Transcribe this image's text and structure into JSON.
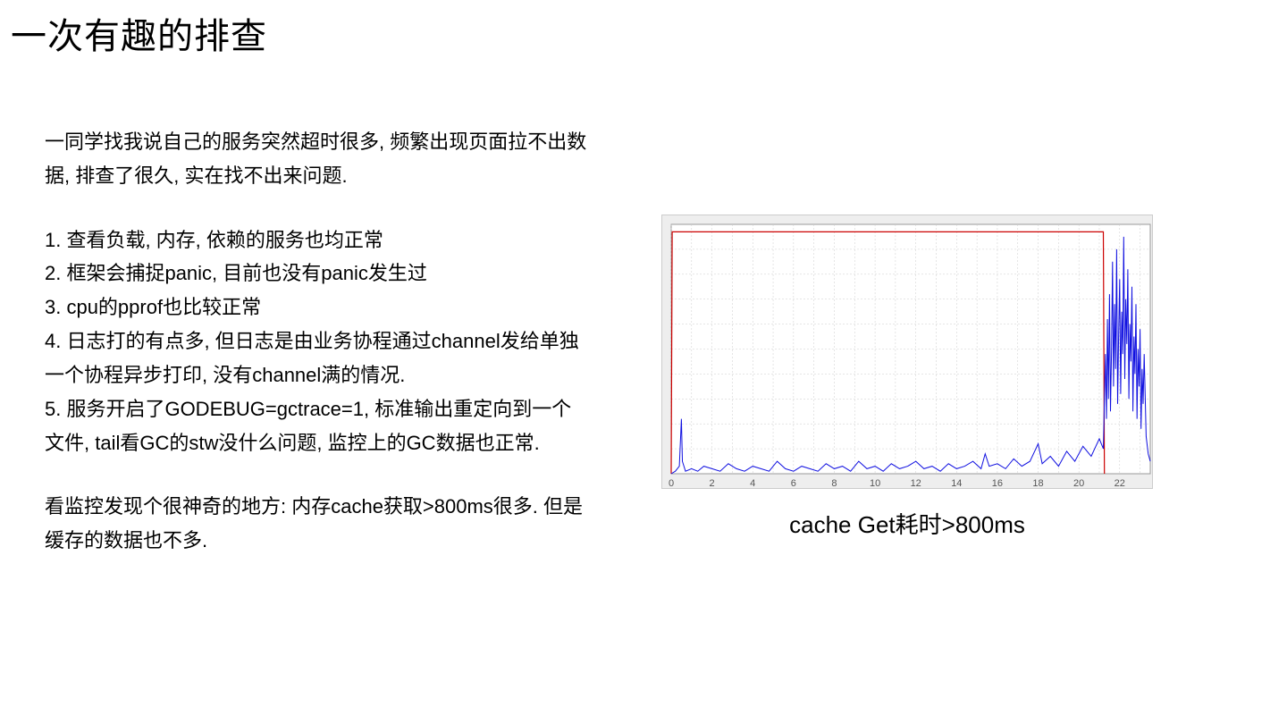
{
  "title": "一次有趣的排查",
  "intro": "一同学找我说自己的服务突然超时很多, 频繁出现页面拉不出数据, 排查了很久, 实在找不出来问题.",
  "points": [
    "1. 查看负载, 内存, 依赖的服务也均正常",
    "2. 框架会捕捉panic, 目前也没有panic发生过",
    "3. cpu的pprof也比较正常",
    "4. 日志打的有点多, 但日志是由业务协程通过channel发给单独一个协程异步打印, 没有channel满的情况.",
    "5. 服务开启了GODEBUG=gctrace=1, 标准输出重定向到一个文件, tail看GC的stw没什么问题, 监控上的GC数据也正常."
  ],
  "observation": "看监控发现个很神奇的地方: 内存cache获取>800ms很多. 但是缓存的数据也不多.",
  "chart": {
    "caption": "cache Get耗时>800ms",
    "type": "line",
    "plot_background": "#ffffff",
    "outer_background": "#eeeeee",
    "border_color": "#cccccc",
    "grid_color": "#cccccc",
    "x_ticks": [
      0,
      2,
      4,
      6,
      8,
      10,
      12,
      14,
      16,
      18,
      20,
      22
    ],
    "x_range": [
      0,
      23.5
    ],
    "y_range": [
      0,
      1.0
    ],
    "tick_font_color": "#555555",
    "tick_font_size": 11,
    "threshold_line": {
      "color": "#cc0000",
      "width": 1.2,
      "points": [
        [
          0,
          0
        ],
        [
          0.05,
          0.97
        ],
        [
          21.2,
          0.97
        ],
        [
          21.25,
          0
        ]
      ]
    },
    "series": {
      "color": "#1010e0",
      "width": 1.0,
      "points": [
        [
          0.0,
          0.0
        ],
        [
          0.2,
          0.01
        ],
        [
          0.4,
          0.03
        ],
        [
          0.5,
          0.22
        ],
        [
          0.55,
          0.05
        ],
        [
          0.7,
          0.01
        ],
        [
          1.0,
          0.02
        ],
        [
          1.3,
          0.01
        ],
        [
          1.6,
          0.03
        ],
        [
          2.0,
          0.02
        ],
        [
          2.4,
          0.01
        ],
        [
          2.8,
          0.04
        ],
        [
          3.2,
          0.02
        ],
        [
          3.6,
          0.01
        ],
        [
          4.0,
          0.03
        ],
        [
          4.4,
          0.02
        ],
        [
          4.8,
          0.01
        ],
        [
          5.2,
          0.05
        ],
        [
          5.6,
          0.02
        ],
        [
          6.0,
          0.01
        ],
        [
          6.4,
          0.03
        ],
        [
          6.8,
          0.02
        ],
        [
          7.2,
          0.01
        ],
        [
          7.6,
          0.04
        ],
        [
          8.0,
          0.02
        ],
        [
          8.4,
          0.03
        ],
        [
          8.8,
          0.01
        ],
        [
          9.2,
          0.05
        ],
        [
          9.6,
          0.02
        ],
        [
          10.0,
          0.03
        ],
        [
          10.4,
          0.01
        ],
        [
          10.8,
          0.04
        ],
        [
          11.2,
          0.02
        ],
        [
          11.6,
          0.03
        ],
        [
          12.0,
          0.05
        ],
        [
          12.4,
          0.02
        ],
        [
          12.8,
          0.03
        ],
        [
          13.2,
          0.01
        ],
        [
          13.6,
          0.04
        ],
        [
          14.0,
          0.02
        ],
        [
          14.4,
          0.03
        ],
        [
          14.8,
          0.05
        ],
        [
          15.2,
          0.02
        ],
        [
          15.4,
          0.08
        ],
        [
          15.6,
          0.03
        ],
        [
          16.0,
          0.04
        ],
        [
          16.4,
          0.02
        ],
        [
          16.8,
          0.06
        ],
        [
          17.2,
          0.03
        ],
        [
          17.6,
          0.05
        ],
        [
          18.0,
          0.12
        ],
        [
          18.2,
          0.04
        ],
        [
          18.6,
          0.07
        ],
        [
          19.0,
          0.03
        ],
        [
          19.4,
          0.09
        ],
        [
          19.8,
          0.05
        ],
        [
          20.2,
          0.11
        ],
        [
          20.6,
          0.07
        ],
        [
          21.0,
          0.14
        ],
        [
          21.2,
          0.1
        ],
        [
          21.3,
          0.48
        ],
        [
          21.35,
          0.22
        ],
        [
          21.4,
          0.62
        ],
        [
          21.45,
          0.3
        ],
        [
          21.5,
          0.72
        ],
        [
          21.55,
          0.25
        ],
        [
          21.6,
          0.5
        ],
        [
          21.65,
          0.85
        ],
        [
          21.7,
          0.35
        ],
        [
          21.75,
          0.68
        ],
        [
          21.8,
          0.42
        ],
        [
          21.85,
          0.9
        ],
        [
          21.9,
          0.28
        ],
        [
          21.95,
          0.55
        ],
        [
          22.0,
          0.78
        ],
        [
          22.05,
          0.32
        ],
        [
          22.1,
          0.65
        ],
        [
          22.15,
          0.48
        ],
        [
          22.2,
          0.95
        ],
        [
          22.25,
          0.38
        ],
        [
          22.3,
          0.7
        ],
        [
          22.35,
          0.52
        ],
        [
          22.4,
          0.82
        ],
        [
          22.45,
          0.3
        ],
        [
          22.5,
          0.6
        ],
        [
          22.55,
          0.45
        ],
        [
          22.6,
          0.75
        ],
        [
          22.65,
          0.25
        ],
        [
          22.7,
          0.55
        ],
        [
          22.75,
          0.4
        ],
        [
          22.8,
          0.68
        ],
        [
          22.85,
          0.22
        ],
        [
          22.9,
          0.5
        ],
        [
          22.95,
          0.35
        ],
        [
          23.0,
          0.58
        ],
        [
          23.05,
          0.18
        ],
        [
          23.1,
          0.42
        ],
        [
          23.15,
          0.28
        ],
        [
          23.2,
          0.48
        ],
        [
          23.3,
          0.15
        ],
        [
          23.4,
          0.08
        ],
        [
          23.5,
          0.05
        ]
      ]
    }
  }
}
